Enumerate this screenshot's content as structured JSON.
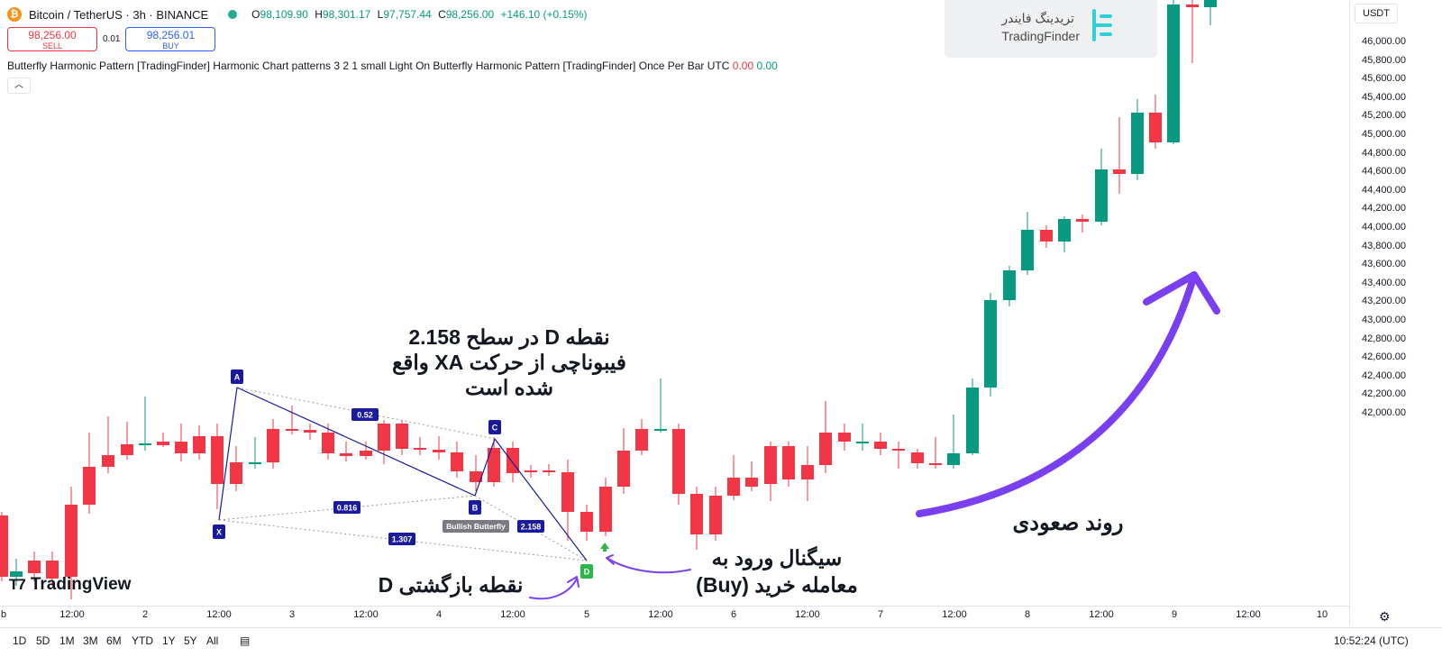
{
  "header": {
    "symbol_title": "Bitcoin / TetherUS · 3h · BINANCE",
    "ohlc": [
      {
        "key": "O",
        "value": "98,109.90"
      },
      {
        "key": "H",
        "value": "98,301.17"
      },
      {
        "key": "L",
        "value": "97,757.44"
      },
      {
        "key": "C",
        "value": "98,256.00"
      }
    ],
    "change": "+146.10 (+0.15%)"
  },
  "trade": {
    "sell_price": "98,256.00",
    "sell_label": "SELL",
    "spread": "0.01",
    "buy_price": "98,256.01",
    "buy_label": "BUY"
  },
  "indicator": {
    "text": "Butterfly Harmonic Pattern [TradingFinder] Harmonic Chart patterns 3 2 1 small Light On Butterfly Harmonic Pattern [TradingFinder] Once Per Bar UTC",
    "value1": "0.00",
    "value2": "0.00",
    "collapse_icon": "chevron-up-icon"
  },
  "watermark": {
    "fa": "تریدینگ فایندر",
    "en": "TradingFinder"
  },
  "currency": "USDT",
  "y_axis_labels": [
    "46,000.00",
    "45,800.00",
    "45,600.00",
    "45,400.00",
    "45,200.00",
    "45,000.00",
    "44,800.00",
    "44,600.00",
    "44,400.00",
    "44,200.00",
    "44,000.00",
    "43,800.00",
    "43,600.00",
    "43,400.00",
    "43,200.00",
    "43,000.00",
    "42,800.00",
    "42,600.00",
    "42,400.00",
    "42,200.00",
    "42,000.00"
  ],
  "x_axis_labels": [
    "b",
    "12:00",
    "2",
    "12:00",
    "3",
    "12:00",
    "4",
    "12:00",
    "5",
    "12:00",
    "6",
    "12:00",
    "7",
    "12:00",
    "8",
    "12:00",
    "9",
    "12:00",
    "10"
  ],
  "ranges": [
    "1D",
    "5D",
    "1M",
    "3M",
    "6M",
    "YTD",
    "1Y",
    "5Y",
    "All"
  ],
  "time_info": "10:52:24 (UTC)",
  "tv_brand": "TradingView",
  "pattern": {
    "points": [
      "X",
      "A",
      "B",
      "C",
      "D"
    ],
    "ratios": [
      "0.52",
      "0.816",
      "1.307",
      "2.158"
    ],
    "label": "Bullish Butterfly"
  },
  "annotations": {
    "d_level_lines": [
      "نقطه D در سطح 2.158",
      "فیبوناچی از حرکت XA واقع",
      "شده است"
    ],
    "reversal": "نقطه بازگشتی D",
    "signal_lines": [
      "سیگنال ورود به",
      "معامله خرید (Buy)"
    ],
    "trend": "روند صعودی"
  },
  "colors": {
    "up": "#089981",
    "down": "#f23645",
    "pattern": "#1a1a9e",
    "arrow": "#7a3ff0",
    "d_point": "#2db54a"
  }
}
